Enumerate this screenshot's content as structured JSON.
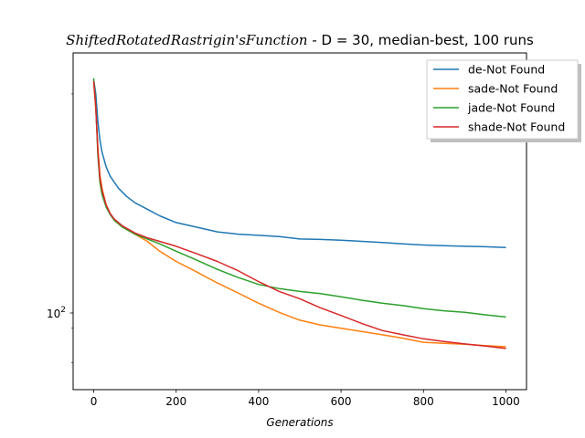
{
  "chart_data": {
    "type": "line",
    "title_math": "ShiftedRotatedRastrigin'sFunction",
    "title_suffix": "  - D = 30, median-best, 100 runs",
    "xlabel": "Generations",
    "ylabel": "",
    "xlim": [
      -50,
      1050
    ],
    "ylim": [
      73,
      230
    ],
    "yscale": "log",
    "x_ticks": [
      "0",
      "200",
      "400",
      "600",
      "800",
      "1000"
    ],
    "y_tick_label": "10^2",
    "grid": false,
    "legend_position": "upper right, partially outside axes",
    "series": [
      {
        "name": "de-Not Found",
        "color": "#1f77b4",
        "x": [
          0,
          5,
          10,
          15,
          20,
          30,
          40,
          50,
          60,
          80,
          100,
          130,
          160,
          200,
          250,
          300,
          350,
          400,
          450,
          500,
          550,
          600,
          650,
          700,
          750,
          800,
          850,
          900,
          950,
          1000
        ],
        "y": [
          210,
          200,
          182,
          171,
          164,
          156,
          151,
          148,
          145,
          141,
          138,
          135,
          132,
          129,
          127,
          125,
          124,
          123.5,
          123,
          122,
          121.8,
          121.5,
          121,
          120.5,
          120,
          119.5,
          119.2,
          119,
          118.8,
          118.5
        ]
      },
      {
        "name": "sade-Not Found",
        "color": "#ff7f0e",
        "x": [
          0,
          5,
          10,
          15,
          20,
          30,
          40,
          50,
          70,
          100,
          130,
          160,
          200,
          250,
          300,
          350,
          400,
          450,
          500,
          550,
          600,
          650,
          700,
          750,
          800,
          850,
          900,
          950,
          1000
        ],
        "y": [
          208,
          190,
          166,
          152,
          145,
          137,
          133,
          130,
          127,
          124,
          121,
          117,
          113,
          109,
          105,
          101.5,
          98,
          95,
          92.5,
          91,
          90,
          89,
          88,
          87,
          85.8,
          85.5,
          85.2,
          84.8,
          84.5
        ]
      },
      {
        "name": "jade-Not Found",
        "color": "#2ca02c",
        "x": [
          0,
          5,
          10,
          15,
          20,
          30,
          40,
          50,
          70,
          100,
          130,
          160,
          200,
          250,
          300,
          350,
          400,
          450,
          500,
          550,
          600,
          650,
          700,
          750,
          800,
          850,
          900,
          950,
          1000
        ],
        "y": [
          211,
          192,
          162,
          148,
          142,
          136,
          132.5,
          130,
          127,
          124,
          122,
          120,
          117,
          113.5,
          110,
          107,
          104.5,
          103,
          102,
          101.3,
          100.2,
          99,
          98,
          97.2,
          96.2,
          95.5,
          95,
          94.2,
          93.5
        ]
      },
      {
        "name": "shade-Not Found",
        "color": "#d62728",
        "x": [
          0,
          5,
          10,
          15,
          20,
          30,
          40,
          50,
          70,
          100,
          130,
          160,
          200,
          250,
          300,
          350,
          400,
          450,
          500,
          550,
          600,
          650,
          700,
          750,
          800,
          850,
          900,
          950,
          1000
        ],
        "y": [
          209,
          191,
          165,
          150,
          144,
          137,
          133,
          130.5,
          127.5,
          124.5,
          122.5,
          121,
          119,
          116,
          113,
          109.5,
          105.5,
          102,
          99.5,
          96.5,
          94,
          91.5,
          89.3,
          88,
          86.8,
          86,
          85.3,
          84.7,
          84
        ]
      }
    ]
  }
}
